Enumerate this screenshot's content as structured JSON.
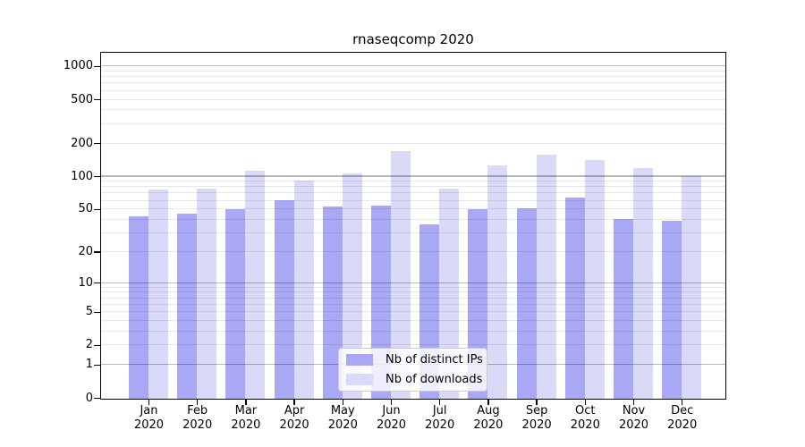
{
  "chart_data": {
    "type": "bar",
    "title": "rnaseqcomp 2020",
    "xlabel": "",
    "ylabel": "",
    "categories": [
      "Jan 2020",
      "Feb 2020",
      "Mar 2020",
      "Apr 2020",
      "May 2020",
      "Jun 2020",
      "Jul 2020",
      "Aug 2020",
      "Sep 2020",
      "Oct 2020",
      "Nov 2020",
      "Dec 2020"
    ],
    "series": [
      {
        "name": "Nb of distinct IPs",
        "color": "#a8a8f5",
        "values": [
          44,
          46,
          51,
          61,
          54,
          55,
          37,
          51,
          52,
          65,
          41,
          40
        ]
      },
      {
        "name": "Nb of downloads",
        "color": "#d9d9f8",
        "values": [
          77,
          79,
          114,
          93,
          108,
          174,
          78,
          127,
          160,
          142,
          121,
          102
        ]
      }
    ],
    "y_axis": {
      "scale": "log10(1+v)",
      "ylim": [
        0,
        1200
      ],
      "tick_values": [
        0,
        1,
        2,
        5,
        10,
        20,
        50,
        100,
        200,
        500,
        1000
      ],
      "tick_labels": [
        "0",
        "1",
        "2",
        "5",
        "10",
        "20",
        "50",
        "100",
        "200",
        "500",
        "1000"
      ],
      "major_gridlines": [
        1,
        10,
        100,
        1000
      ],
      "minor_gridlines": [
        2,
        3,
        4,
        5,
        6,
        7,
        8,
        9,
        20,
        30,
        40,
        50,
        60,
        70,
        80,
        90,
        200,
        300,
        400,
        500,
        600,
        700,
        800,
        900
      ]
    },
    "grid": true,
    "legend": {
      "position": "lower center",
      "entries": [
        "Nb of distinct IPs",
        "Nb of downloads"
      ]
    },
    "colors": {
      "major_grid": "rgba(0,0,0,0.28)",
      "minor_grid": "rgba(0,0,0,0.09)",
      "spine": "#000000",
      "background": "#ffffff",
      "legend_border": "#cccccc"
    }
  }
}
